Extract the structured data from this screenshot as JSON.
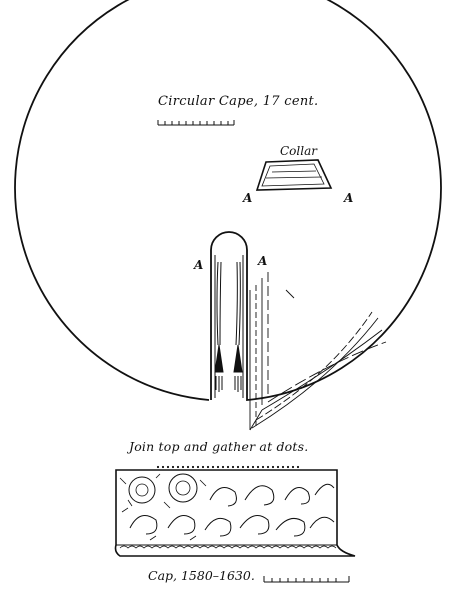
{
  "cape": {
    "title": "Circular Cape, 17 cent."
  },
  "collar": {
    "label": "Collar",
    "point_a": "A"
  },
  "neck_opening": {
    "point_a": "A"
  },
  "instructions": {
    "join": "Join top and gather at dots."
  },
  "cap": {
    "label": "Cap, 1580–1630."
  },
  "colors": {
    "ink": "#111111",
    "paper": "#ffffff"
  }
}
